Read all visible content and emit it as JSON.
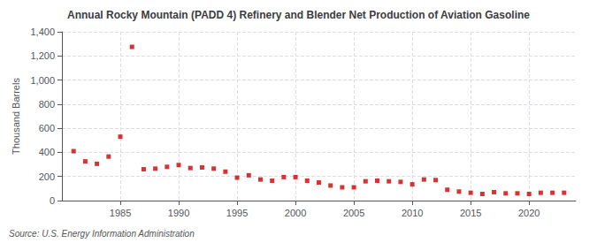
{
  "chart_data": {
    "type": "scatter",
    "title": "Annual Rocky Mountain (PADD 4) Refinery and Blender Net Production of Aviation Gasoline",
    "y_label": "Thousand Barrels",
    "source": "Source: U.S. Energy Information Administration",
    "x": [
      1981,
      1982,
      1983,
      1984,
      1985,
      1986,
      1987,
      1988,
      1989,
      1990,
      1991,
      1992,
      1993,
      1994,
      1995,
      1996,
      1997,
      1998,
      1999,
      2000,
      2001,
      2002,
      2003,
      2004,
      2005,
      2006,
      2007,
      2008,
      2009,
      2010,
      2011,
      2012,
      2013,
      2014,
      2015,
      2016,
      2017,
      2018,
      2019,
      2020,
      2021,
      2022,
      2023
    ],
    "values": [
      410,
      325,
      305,
      365,
      530,
      1275,
      260,
      265,
      280,
      295,
      270,
      275,
      265,
      240,
      190,
      210,
      175,
      165,
      195,
      195,
      165,
      150,
      125,
      110,
      110,
      160,
      165,
      160,
      155,
      135,
      175,
      170,
      90,
      75,
      65,
      55,
      70,
      60,
      60,
      55,
      65,
      65,
      65
    ],
    "color": "#cc0000",
    "marker": "square",
    "xlim": [
      1980,
      2024
    ],
    "xticks": [
      1985,
      1990,
      1995,
      2000,
      2005,
      2010,
      2015,
      2020
    ],
    "ylim": [
      0,
      1400
    ],
    "yticks": [
      0,
      200,
      400,
      600,
      800,
      {
        "value": 1000,
        "label": "1,000"
      },
      {
        "value": 1200,
        "label": "1,200"
      },
      {
        "value": 1400,
        "label": "1,400"
      }
    ],
    "grid": true
  }
}
